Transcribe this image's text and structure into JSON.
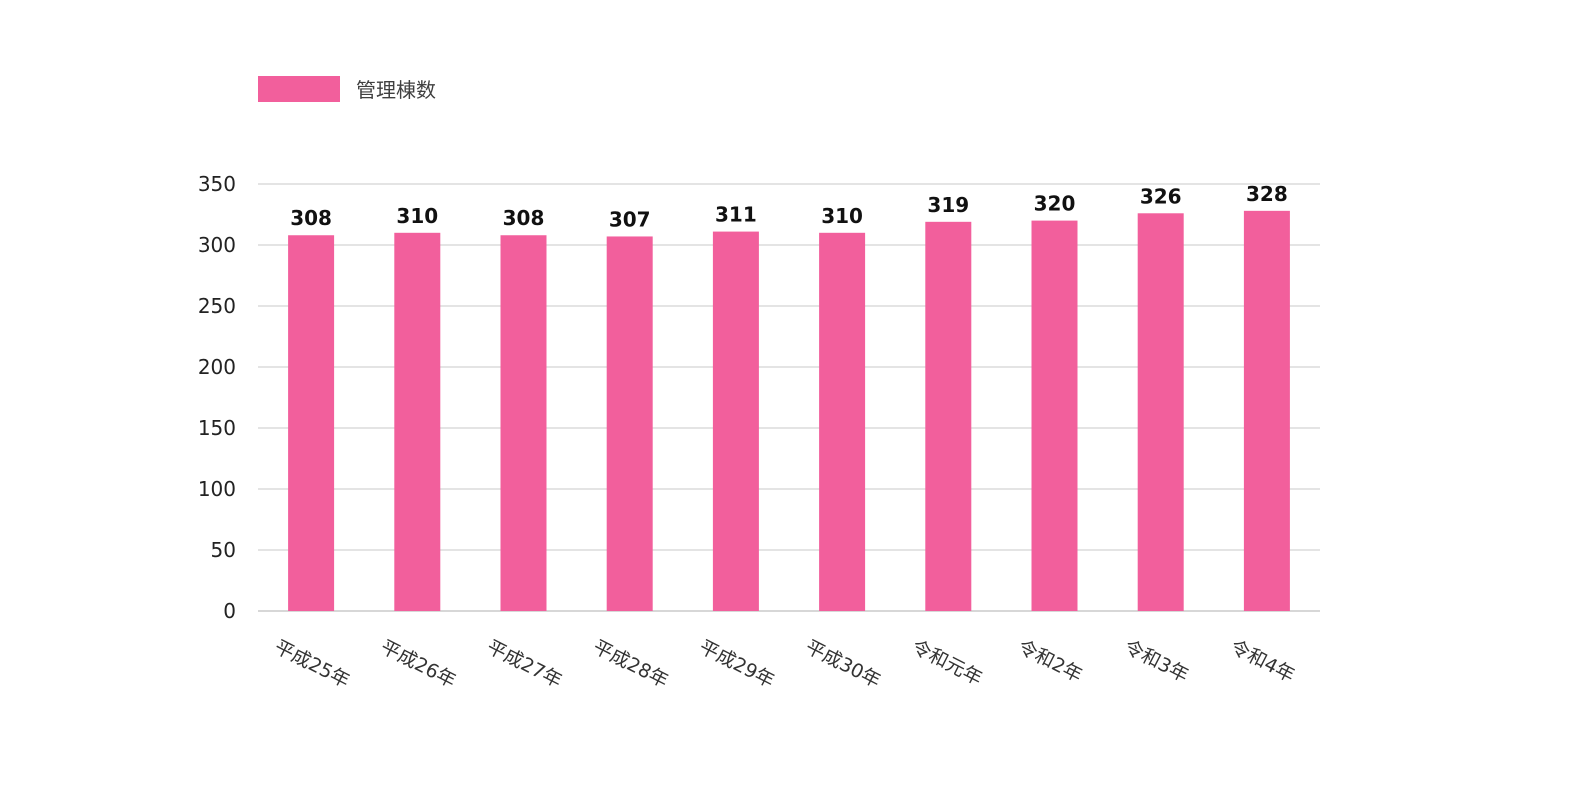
{
  "chart_data": {
    "type": "bar",
    "categories": [
      "平成25年",
      "平成26年",
      "平成27年",
      "平成28年",
      "平成29年",
      "平成30年",
      "令和元年",
      "令和2年",
      "令和3年",
      "令和4年"
    ],
    "series": [
      {
        "name": "管理棟数",
        "values": [
          308,
          310,
          308,
          307,
          311,
          310,
          319,
          320,
          326,
          328
        ],
        "color": "#f25f9c"
      }
    ],
    "ylim": [
      0,
      350
    ],
    "yticks": [
      0,
      50,
      100,
      150,
      200,
      250,
      300,
      350
    ],
    "grid": true,
    "legend": "top-left",
    "data_labels": true
  }
}
